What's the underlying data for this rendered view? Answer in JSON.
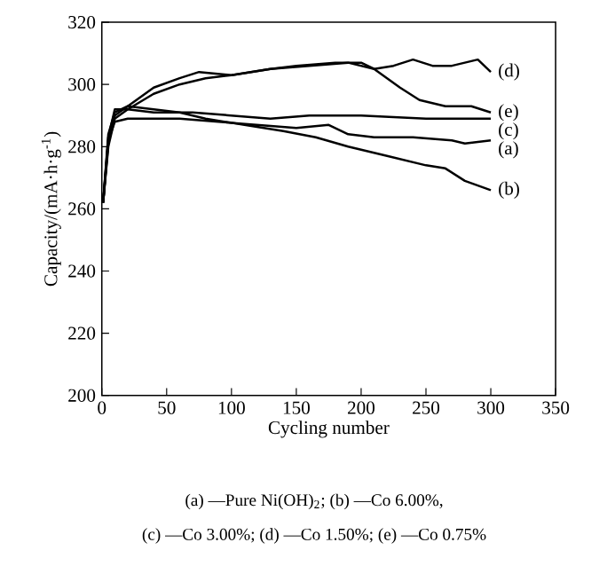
{
  "chart_data": {
    "type": "line",
    "xlabel": "Cycling number",
    "ylabel": "Capacity/(mA·h·g$^{-1}$)",
    "xlim": [
      0,
      350
    ],
    "ylim": [
      200,
      320
    ],
    "xticks": [
      0,
      50,
      100,
      150,
      200,
      250,
      300,
      350
    ],
    "yticks": [
      200,
      220,
      240,
      260,
      280,
      300,
      320
    ],
    "annotations": [
      "(a) —Pure Ni(OH)$_{2}$; (b) —Co 6.00%,",
      "(c) —Co 3.00%; (d) —Co 1.50%; (e) —Co 0.75%"
    ],
    "series": [
      {
        "name": "(d)",
        "color": "#000000",
        "x": [
          1,
          5,
          10,
          20,
          40,
          60,
          80,
          100,
          130,
          150,
          180,
          200,
          210,
          225,
          240,
          255,
          270,
          290,
          300
        ],
        "values": [
          262,
          280,
          289,
          292,
          297,
          300,
          302,
          303,
          305,
          306,
          307,
          307,
          305,
          306,
          308,
          306,
          306,
          308,
          304
        ]
      },
      {
        "name": "(e)",
        "color": "#000000",
        "x": [
          1,
          5,
          10,
          20,
          40,
          60,
          75,
          100,
          130,
          160,
          190,
          210,
          230,
          245,
          265,
          285,
          300
        ],
        "values": [
          262,
          281,
          290,
          293,
          299,
          302,
          304,
          303,
          305,
          306,
          307,
          305,
          299,
          295,
          293,
          293,
          291
        ]
      },
      {
        "name": "(c)",
        "color": "#000000",
        "x": [
          1,
          5,
          10,
          20,
          40,
          70,
          100,
          130,
          160,
          200,
          250,
          300
        ],
        "values": [
          262,
          283,
          292,
          292,
          291,
          291,
          290,
          289,
          290,
          290,
          289,
          289
        ]
      },
      {
        "name": "(a)",
        "color": "#000000",
        "x": [
          1,
          5,
          10,
          20,
          40,
          60,
          90,
          120,
          150,
          175,
          190,
          210,
          240,
          270,
          280,
          300
        ],
        "values": [
          262,
          282,
          288,
          289,
          289,
          289,
          288,
          287,
          286,
          287,
          284,
          283,
          283,
          282,
          281,
          282
        ]
      },
      {
        "name": "(b)",
        "color": "#000000",
        "x": [
          1,
          5,
          10,
          20,
          40,
          60,
          80,
          110,
          140,
          165,
          190,
          220,
          250,
          265,
          280,
          300
        ],
        "values": [
          262,
          284,
          291,
          293,
          292,
          291,
          289,
          287,
          285,
          283,
          280,
          277,
          274,
          273,
          269,
          266
        ]
      }
    ]
  }
}
